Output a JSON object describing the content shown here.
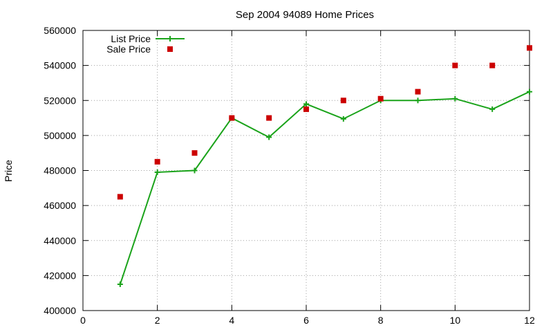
{
  "chart_data": {
    "type": "line",
    "title": "Sep 2004 94089 Home Prices",
    "xlabel": "",
    "ylabel": "Price",
    "xlim": [
      0,
      12
    ],
    "ylim": [
      400000,
      560000
    ],
    "x_ticks": [
      0,
      2,
      4,
      6,
      8,
      10,
      12
    ],
    "y_ticks": [
      400000,
      420000,
      440000,
      460000,
      480000,
      500000,
      520000,
      540000,
      560000
    ],
    "grid": true,
    "legend_position": "top-left",
    "series": [
      {
        "name": "List Price",
        "style": "line-with-plus-markers",
        "color": "#1aa31a",
        "x": [
          1,
          2,
          3,
          4,
          5,
          6,
          7,
          8,
          9,
          10,
          11,
          12
        ],
        "values": [
          415000,
          479000,
          480000,
          510000,
          499000,
          518000,
          509500,
          520000,
          520000,
          521000,
          515000,
          525000
        ]
      },
      {
        "name": "Sale Price",
        "style": "square-points",
        "color": "#cc0000",
        "x": [
          1,
          2,
          3,
          4,
          5,
          6,
          7,
          8,
          9,
          10,
          11,
          12
        ],
        "values": [
          465000,
          485000,
          490000,
          510000,
          510000,
          515000,
          520000,
          521000,
          525000,
          540000,
          540000,
          550000
        ]
      }
    ]
  }
}
